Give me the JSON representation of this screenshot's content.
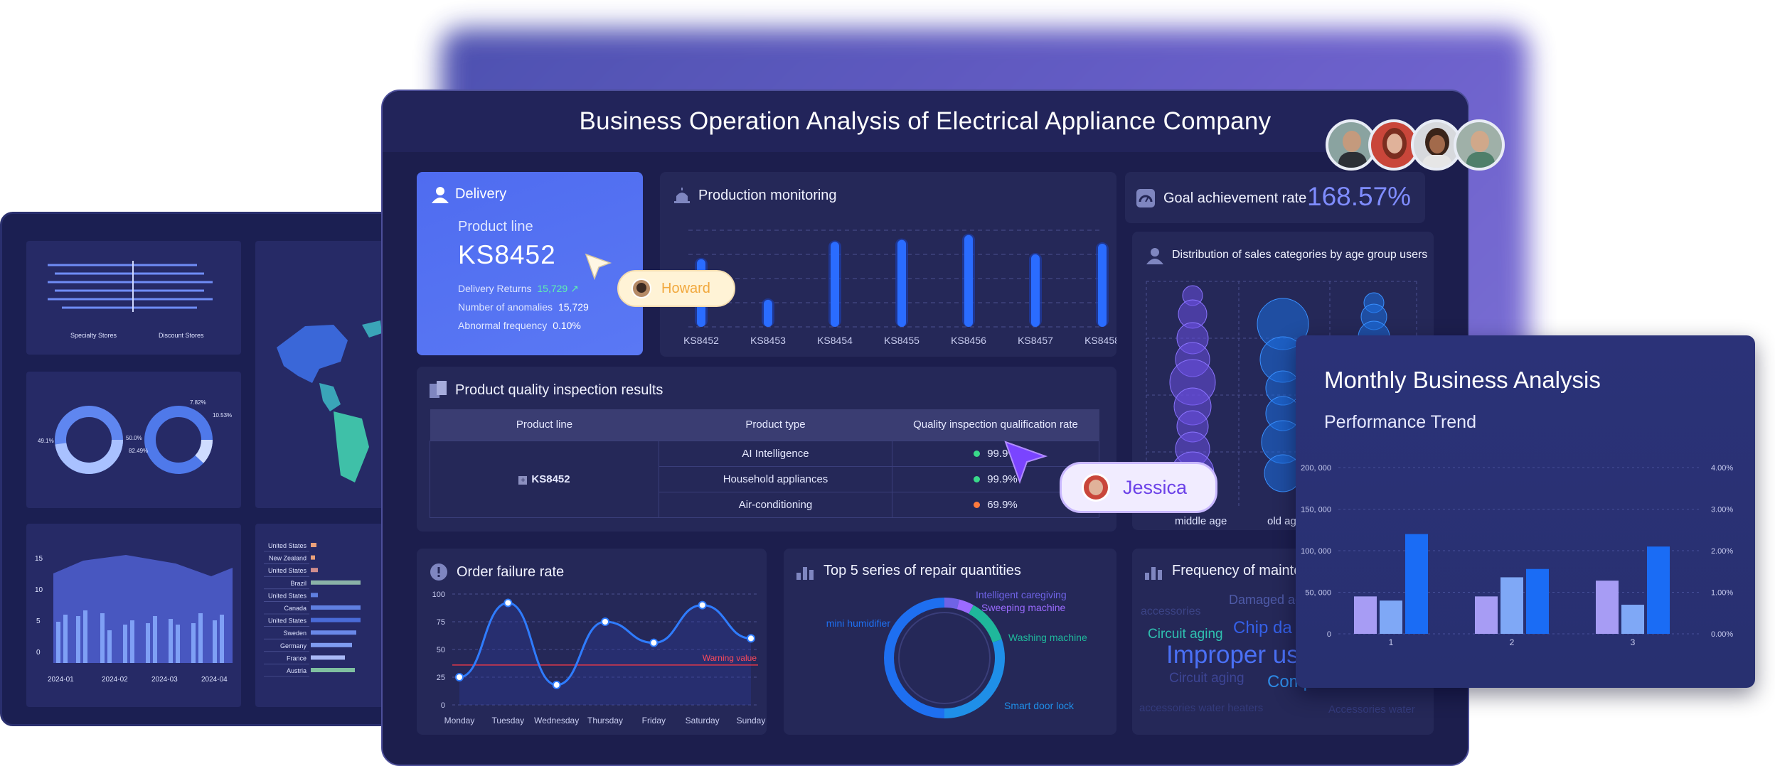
{
  "main_title": "Business Operation Analysis of Electrical Appliance Company",
  "delivery": {
    "title": "Delivery",
    "product_line_label": "Product line",
    "product_line_value": "KS8452",
    "returns_label": "Delivery Returns",
    "returns_value": "15,729",
    "anomalies_label": "Number of anomalies",
    "anomalies_value": "15,729",
    "abnormal_label": "Abnormal frequency",
    "abnormal_value": "0.10%"
  },
  "cursors": {
    "howard": "Howard",
    "jessica": "Jessica"
  },
  "production": {
    "title": "Production monitoring",
    "chart_data": {
      "type": "bar",
      "categories": [
        "KS8452",
        "KS8453",
        "KS8454",
        "KS8455",
        "KS8456",
        "KS8457",
        "KS8458"
      ],
      "values": [
        70,
        28,
        88,
        90,
        95,
        75,
        86
      ],
      "ylim": [
        0,
        100
      ]
    }
  },
  "goal": {
    "label": "Goal achievement rate",
    "value": "168.57%"
  },
  "age_dist": {
    "title": "Distribution of sales categories by age group users",
    "x_labels": [
      "middle age",
      "old ag"
    ]
  },
  "quality": {
    "title": "Product quality inspection results",
    "headers": [
      "Product line",
      "Product type",
      "Quality inspection qualification rate"
    ],
    "product_line": "KS8452",
    "rows": [
      {
        "type": "AI Intelligence",
        "rate": "99.9%",
        "color": "#39d98a"
      },
      {
        "type": "Household appliances",
        "rate": "99.9%",
        "color": "#39d98a"
      },
      {
        "type": "Air-conditioning",
        "rate": "69.9%",
        "color": "#ff7a3d"
      }
    ]
  },
  "order_failure": {
    "title": "Order failure rate",
    "warning_label": "Warning value",
    "chart_data": {
      "type": "line",
      "x": [
        "Monday",
        "Tuesday",
        "Wednesday",
        "Thursday",
        "Friday",
        "Saturday",
        "Sunday"
      ],
      "y_ticks": [
        "0",
        "25",
        "50",
        "75",
        "100"
      ],
      "values": [
        25,
        92,
        18,
        75,
        56,
        90,
        60
      ],
      "warning": 36,
      "ylim": [
        0,
        100
      ]
    }
  },
  "repair": {
    "title": "Top 5 series of repair quantities",
    "chart_data": {
      "type": "pie",
      "labels": [
        "Intelligent caregiving",
        "Sweeping machine",
        "Washing machine",
        "Smart door lock",
        "mini humidifier"
      ],
      "values": [
        4,
        4,
        12,
        30,
        50
      ],
      "colors": [
        "#6f63e6",
        "#9b6bff",
        "#1fb89b",
        "#1f8fe8",
        "#1e6ff0"
      ]
    }
  },
  "maint": {
    "title": "Frequency of mainte",
    "words": [
      "Damaged ac",
      "accessories",
      "Circuit aging",
      "Chip da",
      "Improper us",
      "Circuit aging",
      "Compressor dama",
      "accessories water heaters",
      "Accessories water"
    ]
  },
  "monthly": {
    "title": "Monthly Business Analysis",
    "subtitle": "Performance Trend",
    "chart_data": {
      "type": "bar",
      "categories": [
        "1",
        "2",
        "3"
      ],
      "series": [
        {
          "values": [
            45000,
            40000,
            120000
          ],
          "colors": [
            "#a79cf4",
            "#7fa8f6",
            "#1a6cf5"
          ]
        },
        {
          "values": [
            45000,
            68000,
            78000
          ],
          "colors": [
            "#a79cf4",
            "#7fa8f6",
            "#1a6cf5"
          ]
        },
        {
          "values": [
            64000,
            35000,
            105000
          ],
          "colors": [
            "#a79cf4",
            "#7fa8f6",
            "#1a6cf5"
          ]
        }
      ],
      "y_ticks": [
        "0",
        "50, 000",
        "100, 000",
        "150, 000",
        "200, 000"
      ],
      "y2_ticks": [
        "0.00%",
        "1.00%",
        "2.00%",
        "3.00%",
        "4.00%"
      ],
      "ylim": [
        0,
        200000
      ]
    }
  },
  "left_dash": {
    "legend": [
      "Specialty Stores",
      "Discount Stores"
    ],
    "donut_labels": [
      "49.1%",
      "50.0%",
      "82.49%",
      "7.82%",
      "10.53%"
    ],
    "area_y": [
      "15",
      "10",
      "5",
      "0"
    ],
    "area_x": [
      "2024-01",
      "2024-02",
      "2024-03",
      "2024-04"
    ],
    "countries": [
      "United States",
      "New Zealand",
      "United States",
      "Brazil",
      "United States",
      "Canada",
      "United States",
      "Sweden",
      "Germany",
      "France",
      "Austria"
    ]
  }
}
